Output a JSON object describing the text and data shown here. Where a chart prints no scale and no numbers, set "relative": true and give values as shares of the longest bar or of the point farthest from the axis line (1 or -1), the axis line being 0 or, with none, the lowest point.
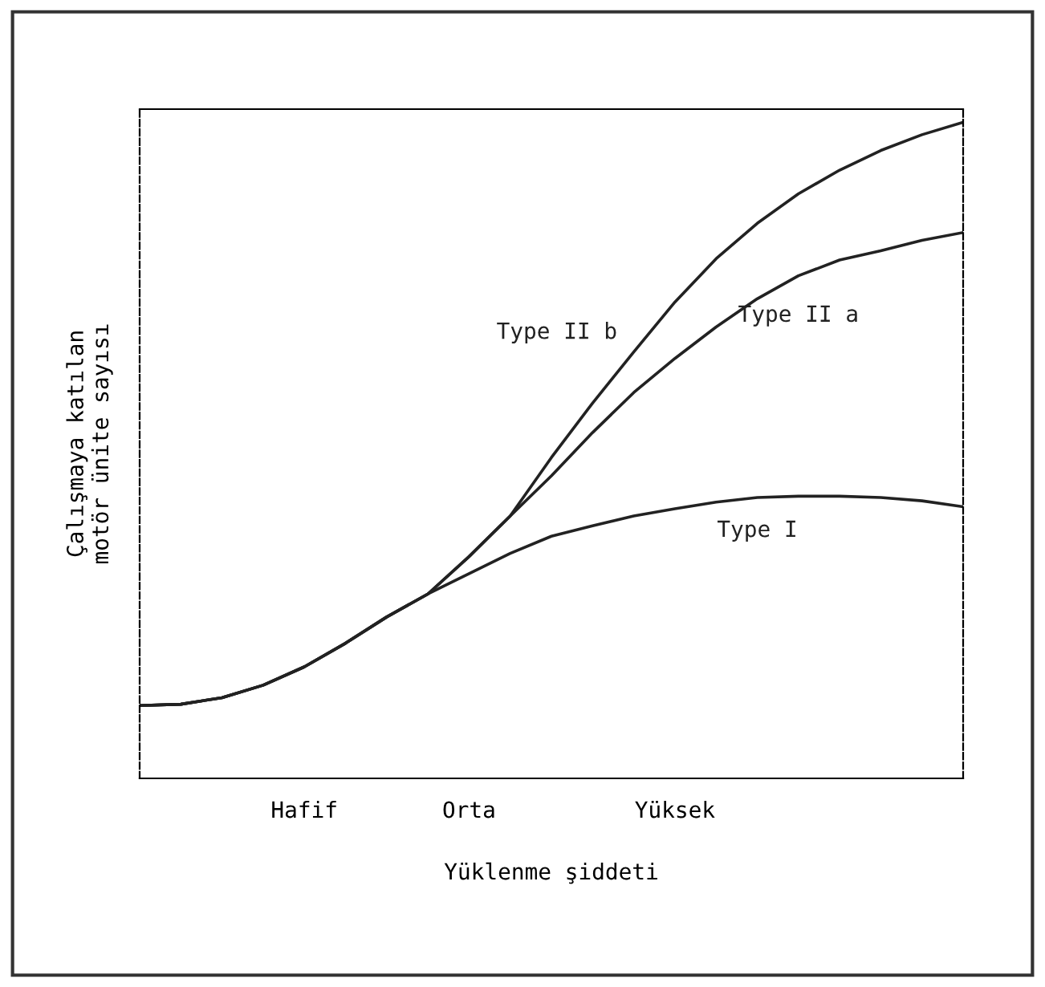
{
  "chart_data": {
    "type": "line",
    "relative": true,
    "xlabel": "Yüklenme şiddeti",
    "ylabel": "Çalışmaya katılan\nmotör ünite sayısı",
    "categories": [
      null,
      null,
      null,
      null,
      "Hafif",
      null,
      null,
      null,
      "Orta",
      null,
      null,
      null,
      null,
      "Yüksek",
      null,
      null,
      null,
      null,
      null,
      null,
      null
    ],
    "series": [
      {
        "name": "Type I",
        "color": "#222222",
        "values": [
          0.111,
          0.113,
          0.123,
          0.142,
          0.17,
          0.206,
          0.246,
          0.281,
          0.312,
          0.343,
          0.369,
          0.385,
          0.4,
          0.411,
          0.421,
          0.428,
          0.43,
          0.43,
          0.428,
          0.423,
          0.414
        ]
      },
      {
        "name": "Type II a",
        "color": "#222222",
        "values": [
          0.111,
          0.113,
          0.123,
          0.142,
          0.17,
          0.206,
          0.246,
          0.281,
          0.338,
          0.4,
          0.461,
          0.527,
          0.588,
          0.64,
          0.688,
          0.731,
          0.766,
          0.79,
          0.804,
          0.82,
          0.832
        ]
      },
      {
        "name": "Type II b",
        "color": "#222222",
        "values": [
          0.111,
          0.113,
          0.123,
          0.142,
          0.17,
          0.206,
          0.246,
          0.281,
          0.338,
          0.4,
          0.489,
          0.572,
          0.65,
          0.726,
          0.792,
          0.846,
          0.891,
          0.927,
          0.957,
          0.981,
          1.0
        ]
      }
    ],
    "legend": false,
    "grid": false,
    "marker": "none",
    "line_style": "solid"
  }
}
